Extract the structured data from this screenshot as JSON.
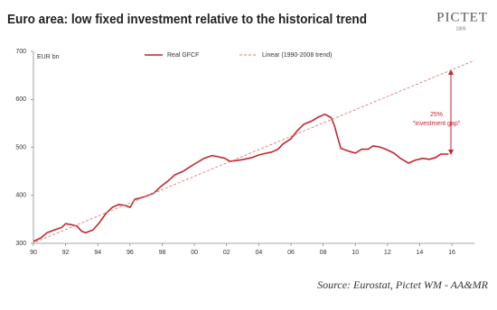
{
  "chart_data": {
    "type": "line",
    "title": "Euro area: low fixed investment relative to the historical trend",
    "y_label": "EUR bn",
    "source": "Source: Eurostat, Pictet WM - AA&MR",
    "logo": {
      "name": "PICTET",
      "year": "1805"
    },
    "annotations": [
      "25%",
      "\"investment gap\""
    ],
    "xlim": [
      1990,
      2017.4
    ],
    "ylim": [
      300,
      700
    ],
    "yticks": [
      300,
      400,
      500,
      600,
      700
    ],
    "xticks": [
      {
        "value": 1990,
        "label": "90"
      },
      {
        "value": 1992,
        "label": "92"
      },
      {
        "value": 1994,
        "label": "94"
      },
      {
        "value": 1996,
        "label": "96"
      },
      {
        "value": 1998,
        "label": "98"
      },
      {
        "value": 2000,
        "label": "00"
      },
      {
        "value": 2002,
        "label": "02"
      },
      {
        "value": 2004,
        "label": "04"
      },
      {
        "value": 2006,
        "label": "06"
      },
      {
        "value": 2008,
        "label": "08"
      },
      {
        "value": 2010,
        "label": "10"
      },
      {
        "value": 2012,
        "label": "12"
      },
      {
        "value": 2014,
        "label": "14"
      },
      {
        "value": 2016,
        "label": "16"
      }
    ],
    "grid": false,
    "series": [
      {
        "name": "Real GFCF",
        "color": "#c1272d",
        "dashed": false,
        "x": [
          1990,
          1990.45,
          1990.85,
          1991.3,
          1991.75,
          1992,
          1992.3,
          1992.7,
          1993,
          1993.25,
          1993.7,
          1994.1,
          1994.5,
          1994.9,
          1995.3,
          1995.7,
          1996,
          1996.3,
          1996.6,
          1997,
          1997.5,
          1997.9,
          1998.4,
          1998.8,
          1999.3,
          1999.8,
          2000.2,
          2000.6,
          2001.1,
          2001.4,
          2001.9,
          2002.2,
          2002.7,
          2003.1,
          2003.6,
          2004,
          2004.5,
          2004.8,
          2005.2,
          2005.5,
          2006,
          2006.4,
          2006.8,
          2007.3,
          2007.7,
          2008.1,
          2008.5,
          2008.7,
          2008.9,
          2009.1,
          2009.6,
          2010,
          2010.4,
          2010.8,
          2011.1,
          2011.5,
          2011.9,
          2012.4,
          2012.8,
          2013.3,
          2013.7,
          2014.2,
          2014.6,
          2015,
          2015.3,
          2015.8
        ],
        "values": [
          304,
          311,
          322,
          328,
          333,
          341,
          339,
          336,
          325,
          322,
          328,
          343,
          362,
          375,
          381,
          379,
          375,
          392,
          394,
          398,
          405,
          418,
          431,
          443,
          450,
          461,
          469,
          477,
          483,
          481,
          477,
          471,
          473,
          475,
          479,
          484,
          488,
          490,
          496,
          507,
          518,
          535,
          548,
          555,
          563,
          569,
          562,
          545,
          521,
          498,
          492,
          488,
          496,
          496,
          503,
          501,
          496,
          488,
          477,
          467,
          473,
          477,
          475,
          479,
          486,
          486
        ]
      },
      {
        "name": "Linear (1990-2008 trend)",
        "color": "#e07a7a",
        "dashed": true,
        "x": [
          1990.15,
          2017.4
        ],
        "values": [
          303,
          681
        ]
      }
    ]
  }
}
